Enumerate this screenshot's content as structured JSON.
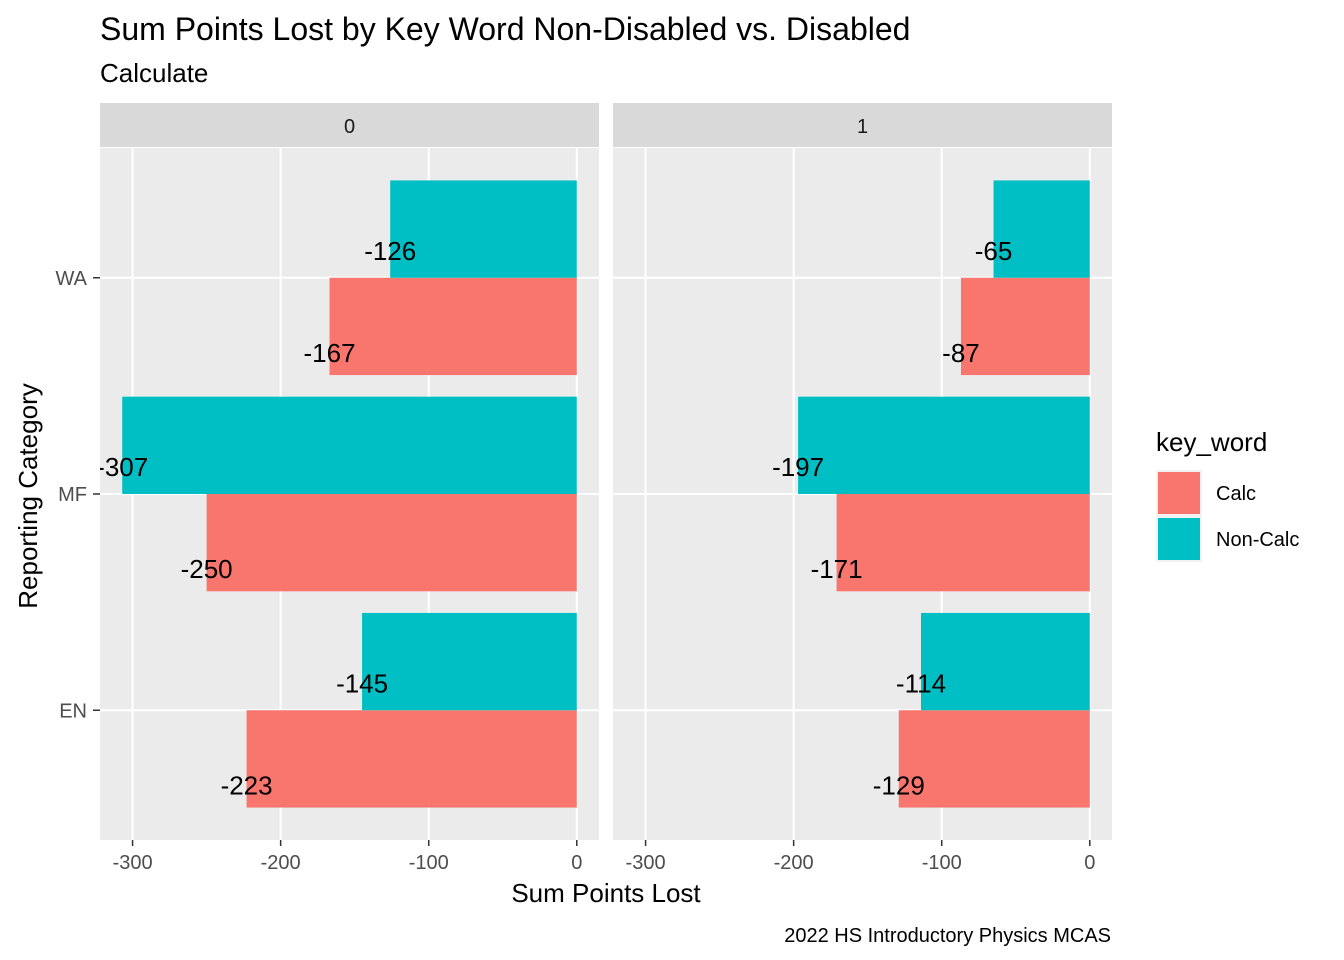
{
  "colors": {
    "calc": "#F8766D",
    "non_calc": "#00BFC4",
    "panel_bg": "#EBEBEB",
    "strip_bg": "#D9D9D9",
    "grid": "#FFFFFF"
  },
  "chart_data": {
    "type": "bar",
    "orientation": "horizontal",
    "title": "Sum Points Lost by Key Word Non-Disabled vs. Disabled",
    "subtitle": "Calculate",
    "xlabel": "Sum Points Lost",
    "ylabel": "Reporting Category",
    "caption": "2022 HS Introductory Physics MCAS",
    "xlim": [
      -322,
      15
    ],
    "x_ticks": [
      -300,
      -200,
      -100,
      0
    ],
    "x_tick_labels": [
      "-300",
      "-200",
      "-100",
      "0"
    ],
    "categories": [
      "WA",
      "MF",
      "EN"
    ],
    "legend": {
      "title": "key_word",
      "position": "right",
      "entries": [
        "Calc",
        "Non-Calc"
      ]
    },
    "grid": true,
    "facets": [
      {
        "label": "0",
        "series": [
          {
            "name": "Calc",
            "values": [
              -167,
              -250,
              -223
            ],
            "labels": [
              "-167",
              "-250",
              "-223"
            ]
          },
          {
            "name": "Non-Calc",
            "values": [
              -126,
              -307,
              -145
            ],
            "labels": [
              "-126",
              "-307",
              "-145"
            ]
          }
        ]
      },
      {
        "label": "1",
        "series": [
          {
            "name": "Calc",
            "values": [
              -87,
              -171,
              -129
            ],
            "labels": [
              "-87",
              "-171",
              "-129"
            ]
          },
          {
            "name": "Non-Calc",
            "values": [
              -65,
              -197,
              -114
            ],
            "labels": [
              "-65",
              "-197",
              "-114"
            ]
          }
        ]
      }
    ]
  }
}
